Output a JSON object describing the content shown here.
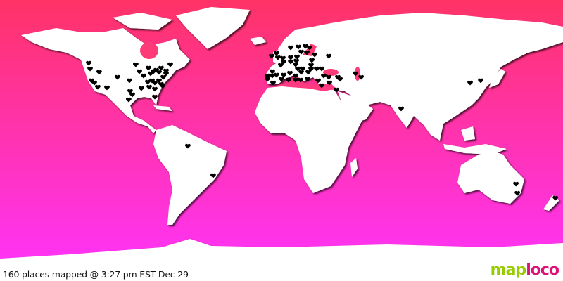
{
  "map": {
    "projection": "equirectangular",
    "colors": {
      "ocean_top": "#ff3366",
      "ocean_bottom": "#ff33ff",
      "land": "#ffffff",
      "marker": "#000000"
    },
    "marker_icon": "heart-icon",
    "markers": [
      [
        -123.3,
        49.5
      ],
      [
        -122.4,
        45.9
      ],
      [
        -116.6,
        43.7
      ],
      [
        -121.5,
        38.3
      ],
      [
        -119.7,
        36.9
      ],
      [
        -117.5,
        34.2
      ],
      [
        -111.6,
        33.8
      ],
      [
        -104.9,
        40.5
      ],
      [
        -97.2,
        38.3
      ],
      [
        -93.2,
        48.6
      ],
      [
        -90.9,
        44.1
      ],
      [
        -88.2,
        41.4
      ],
      [
        -85.1,
        46.4
      ],
      [
        -83.7,
        42.8
      ],
      [
        -81.9,
        44.1
      ],
      [
        -80.1,
        45
      ],
      [
        -78.3,
        43.7
      ],
      [
        -77,
        46.4
      ],
      [
        -73.8,
        44.6
      ],
      [
        -71.1,
        48.6
      ],
      [
        -82.8,
        38.3
      ],
      [
        -81,
        36.9
      ],
      [
        -78.3,
        38.3
      ],
      [
        -75.6,
        40.5
      ],
      [
        -73.8,
        42.8
      ],
      [
        -85.5,
        37.4
      ],
      [
        -84.6,
        34.2
      ],
      [
        -81,
        32.9
      ],
      [
        -77,
        36
      ],
      [
        -76,
        34.8
      ],
      [
        -81,
        27.9
      ],
      [
        -89.6,
        33.3
      ],
      [
        -96.8,
        31.5
      ],
      [
        -95.4,
        29.3
      ],
      [
        -97.7,
        26.1
      ],
      [
        5.9,
        59.4
      ],
      [
        10.8,
        59.9
      ],
      [
        15.3,
        60.3
      ],
      [
        18,
        59.4
      ],
      [
        12.6,
        56.7
      ],
      [
        16.2,
        56.3
      ],
      [
        21.2,
        54.9
      ],
      [
        30.2,
        54
      ],
      [
        -6.3,
        54
      ],
      [
        -3.2,
        55.8
      ],
      [
        -2.3,
        53.1
      ],
      [
        0.9,
        52.7
      ],
      [
        5.9,
        53.1
      ],
      [
        9.9,
        53.6
      ],
      [
        1.4,
        50.4
      ],
      [
        5.9,
        50.4
      ],
      [
        9.5,
        50.9
      ],
      [
        -0.5,
        48.2
      ],
      [
        9,
        48.6
      ],
      [
        19.4,
        51.3
      ],
      [
        18.9,
        48.2
      ],
      [
        13.5,
        45.9
      ],
      [
        10.4,
        45.9
      ],
      [
        18.9,
        45.9
      ],
      [
        22.5,
        45.9
      ],
      [
        25.7,
        45.9
      ],
      [
        -5.9,
        44.1
      ],
      [
        -9,
        41.4
      ],
      [
        -5.9,
        41.4
      ],
      [
        -3.2,
        41.9
      ],
      [
        1.4,
        41.9
      ],
      [
        5.4,
        43.2
      ],
      [
        9,
        41.4
      ],
      [
        12.6,
        43.7
      ],
      [
        17.1,
        43.7
      ],
      [
        -5.4,
        36.9
      ],
      [
        -9,
        39.2
      ],
      [
        0,
        39.2
      ],
      [
        4.5,
        38.7
      ],
      [
        9,
        38.7
      ],
      [
        12.2,
        38.7
      ],
      [
        16.7,
        39.2
      ],
      [
        23.4,
        38.3
      ],
      [
        27,
        41.4
      ],
      [
        30.2,
        40.5
      ],
      [
        36,
        40.5
      ],
      [
        37.4,
        39.2
      ],
      [
        30.6,
        36.9
      ],
      [
        25.7,
        35.1
      ],
      [
        35.1,
        32.4
      ],
      [
        47.3,
        42.8
      ],
      [
        50.9,
        40.5
      ],
      [
        76.5,
        20.3
      ],
      [
        120.6,
        36.9
      ],
      [
        127.4,
        38.3
      ],
      [
        -59.9,
        -3.6
      ],
      [
        -43.7,
        -22.5
      ],
      [
        150.8,
        -33.8
      ],
      [
        149.9,
        -27.9
      ],
      [
        175.1,
        -36.9
      ]
    ]
  },
  "caption": "160 places mapped @ 3:27 pm EST Dec 29",
  "logo": {
    "part1": "map",
    "part2": "loco"
  }
}
